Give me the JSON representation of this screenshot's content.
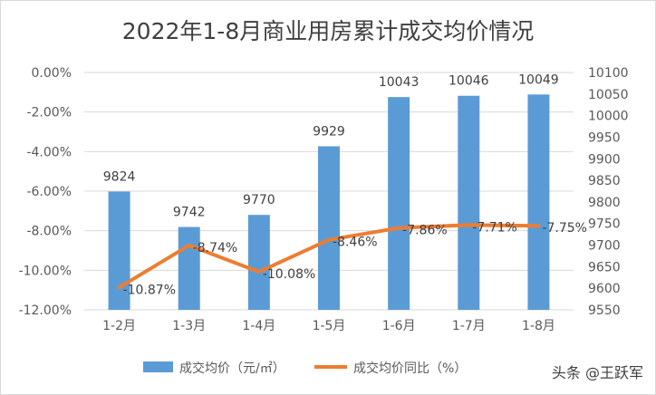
{
  "chart_data": {
    "type": "bar",
    "title": "2022年1-8月商业用房累计成交均价情况",
    "categories": [
      "1-2月",
      "1-3月",
      "1-4月",
      "1-5月",
      "1-6月",
      "1-7月",
      "1-8月"
    ],
    "series": [
      {
        "name": "成交均价（元/㎡）",
        "type": "bar",
        "axis": "right",
        "color": "#5b9bd5",
        "values": [
          9824,
          9742,
          9770,
          9929,
          10043,
          10046,
          10049
        ],
        "labels": [
          "9824",
          "9742",
          "9770",
          "9929",
          "10043",
          "10046",
          "10049"
        ]
      },
      {
        "name": "成交均价同比（%）",
        "type": "line",
        "axis": "left",
        "color": "#ed7d31",
        "values": [
          -10.87,
          -8.74,
          -10.08,
          -8.46,
          -7.86,
          -7.71,
          -7.75
        ],
        "labels": [
          "-10.87%",
          "-8.74%",
          "-10.08%",
          "-8.46%",
          "-7.86%",
          "-7.71%",
          "-7.75%"
        ]
      }
    ],
    "left_axis": {
      "ylim": [
        -12,
        0
      ],
      "ticks": [
        0,
        -2,
        -4,
        -6,
        -8,
        -10,
        -12
      ],
      "tick_labels": [
        "0.00%",
        "-2.00%",
        "-4.00%",
        "-6.00%",
        "-8.00%",
        "-10.00%",
        "-12.00%"
      ]
    },
    "right_axis": {
      "ylim": [
        9550,
        10100
      ],
      "ticks": [
        10100,
        10050,
        10000,
        9950,
        9900,
        9850,
        9800,
        9750,
        9700,
        9650,
        9600,
        9550
      ],
      "tick_labels": [
        "10100",
        "10050",
        "10000",
        "9950",
        "9900",
        "9850",
        "9800",
        "9750",
        "9700",
        "9650",
        "9600",
        "9550"
      ]
    },
    "legend": "bottom",
    "grid": true,
    "watermark": "头条 @王跃军"
  }
}
